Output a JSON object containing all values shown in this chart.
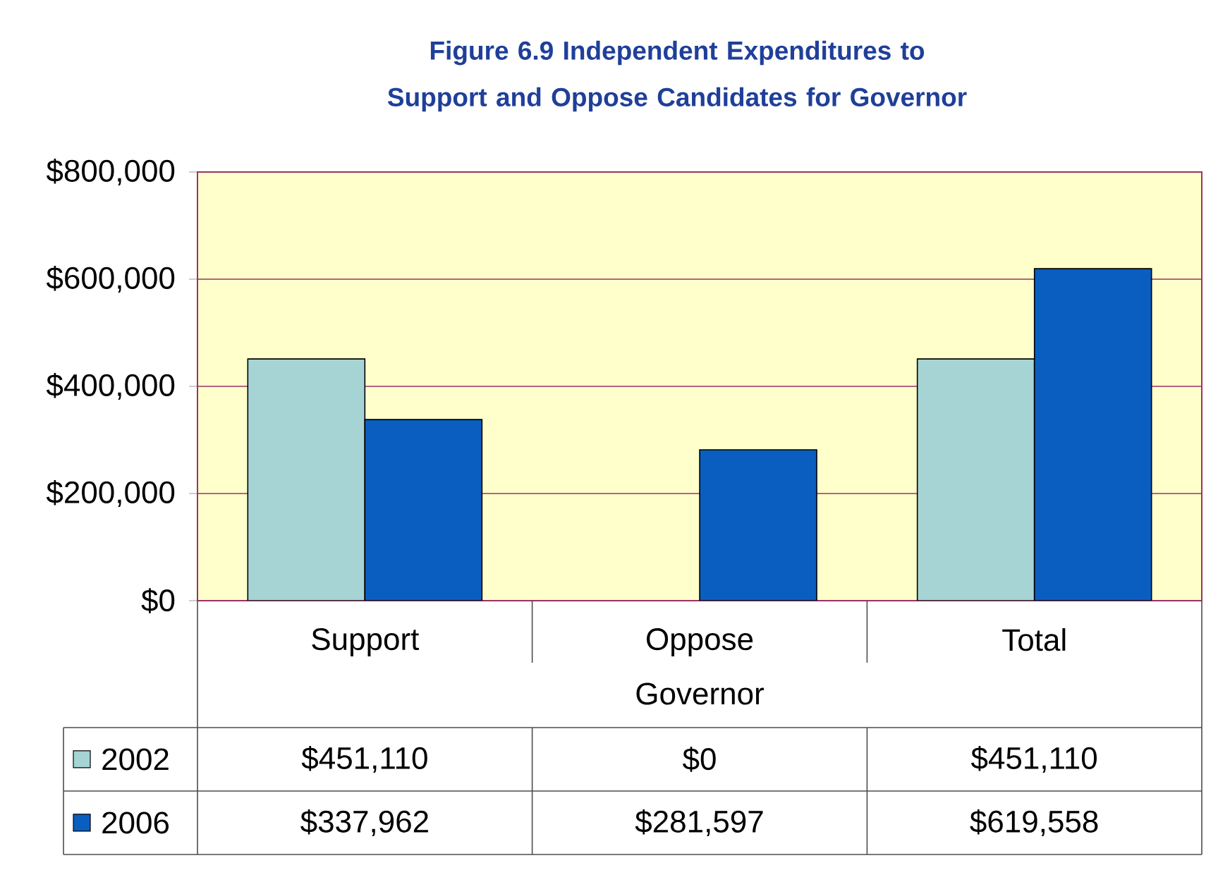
{
  "chart_data": {
    "type": "bar",
    "title": "Figure 6.9  Independent Expenditures to Support and Oppose Candidates for Governor",
    "xlabel": "Governor",
    "categories": [
      "Support",
      "Oppose",
      "Total"
    ],
    "series": [
      {
        "name": "2002",
        "color": "#a6d4d4",
        "values": [
          451110,
          0,
          451110
        ],
        "value_labels": [
          "$451,110",
          "$0",
          "$451,110"
        ]
      },
      {
        "name": "2006",
        "color": "#0a5ec0",
        "values": [
          337962,
          281597,
          619558
        ],
        "value_labels": [
          "$337,962",
          "$281,597",
          "$619,558"
        ]
      }
    ],
    "ylim": [
      0,
      800000
    ],
    "yticks": [
      {
        "value": 0,
        "label": "$0"
      },
      {
        "value": 200000,
        "label": "$200,000"
      },
      {
        "value": 400000,
        "label": "$400,000"
      },
      {
        "value": 600000,
        "label": "$600,000"
      },
      {
        "value": 800000,
        "label": "$800,000"
      }
    ],
    "grid": "y",
    "legend": "bottom"
  }
}
